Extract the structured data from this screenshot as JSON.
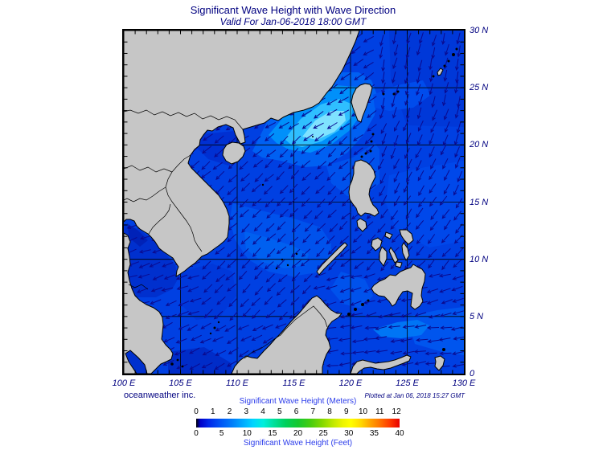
{
  "header": {
    "title": "Significant Wave Height with Wave Direction",
    "subtitle": "Valid For Jan-06-2018 18:00 GMT"
  },
  "map": {
    "lat_labels": [
      "30 N",
      "25 N",
      "20 N",
      "15 N",
      "10 N",
      "5 N",
      "0"
    ],
    "lon_labels": [
      "100 E",
      "105 E",
      "110 E",
      "115 E",
      "120 E",
      "125 E",
      "130 E"
    ],
    "land_color": "#C6C6C6",
    "sea_color": "#0040E2",
    "arrow_color": "#0A0A8F",
    "grid_color": "#000000",
    "label_color": "#000080"
  },
  "footer": {
    "credit": "oceanweather inc.",
    "plotted": "Plotted at Jan 06, 2018 15:27 GMT"
  },
  "colorbar": {
    "meters_label": "Significant Wave Height (Meters)",
    "feet_label": "Significant Wave Height (Feet)",
    "meters_ticks": [
      "0",
      "1",
      "2",
      "3",
      "4",
      "5",
      "6",
      "7",
      "8",
      "9",
      "10",
      "11",
      "12"
    ],
    "feet_ticks": [
      "0",
      "5",
      "10",
      "15",
      "20",
      "25",
      "30",
      "35",
      "40"
    ],
    "gradient_stops": [
      [
        "#000000",
        0
      ],
      [
        "#0000C8",
        2
      ],
      [
        "#0026E8",
        6
      ],
      [
        "#0055F5",
        12
      ],
      [
        "#0080FA",
        18
      ],
      [
        "#00AAFF",
        23
      ],
      [
        "#00D4FF",
        28
      ],
      [
        "#00EEDC",
        33
      ],
      [
        "#00E09E",
        38
      ],
      [
        "#00D05C",
        44
      ],
      [
        "#14C830",
        50
      ],
      [
        "#44CC10",
        56
      ],
      [
        "#84D800",
        62
      ],
      [
        "#BCE800",
        67
      ],
      [
        "#ECF400",
        72
      ],
      [
        "#FFFF00",
        76
      ],
      [
        "#FFD800",
        81
      ],
      [
        "#FFAA00",
        85
      ],
      [
        "#FF7700",
        90
      ],
      [
        "#FF3C00",
        95
      ],
      [
        "#E80000",
        100
      ]
    ]
  }
}
